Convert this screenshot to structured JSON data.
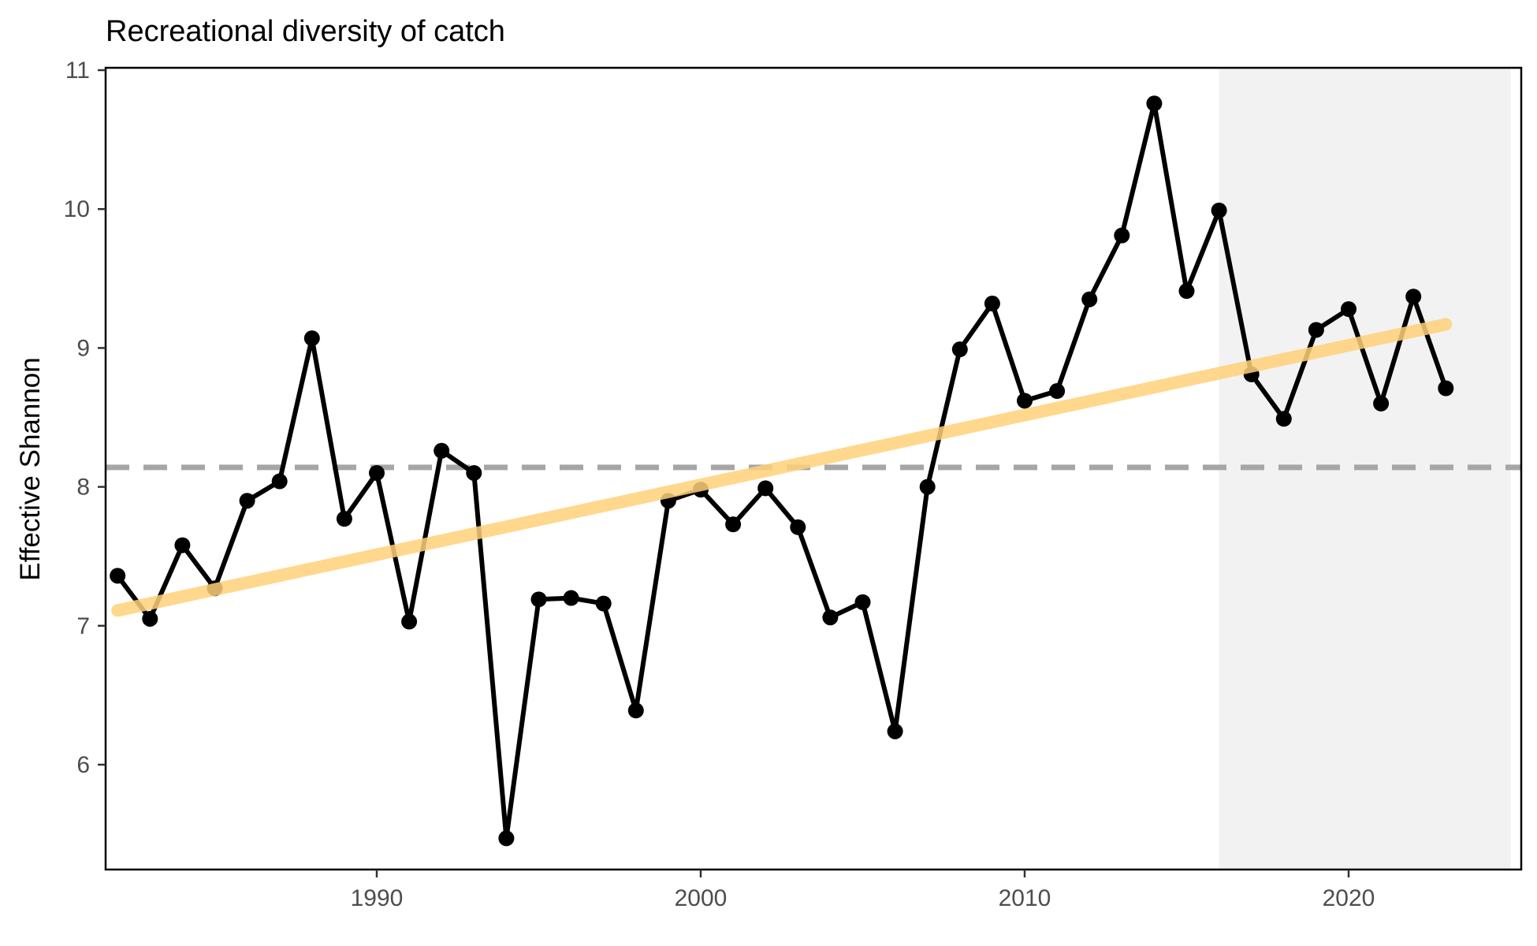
{
  "chart_data": {
    "type": "line",
    "title": "Recreational diversity of catch",
    "xlabel": "",
    "ylabel": "Effective Shannon",
    "xlim": [
      1982,
      2025.4
    ],
    "ylim": [
      5.2,
      11.0
    ],
    "xticks": [
      1990,
      2000,
      2010,
      2020
    ],
    "yticks": [
      6,
      7,
      8,
      9,
      10,
      11
    ],
    "grid": false,
    "legend": "none",
    "series": [
      {
        "x": [
          1982,
          1983,
          1984,
          1985,
          1986,
          1987,
          1988,
          1989,
          1990,
          1991,
          1992,
          1993,
          1994,
          1995,
          1996,
          1997,
          1998,
          1999,
          2000,
          2001,
          2002,
          2003,
          2004,
          2005,
          2006,
          2007,
          2008,
          2009,
          2010,
          2011,
          2012,
          2013,
          2014,
          2015,
          2016,
          2017,
          2018,
          2019,
          2020,
          2021,
          2022,
          2023
        ],
        "values": [
          7.36,
          7.05,
          7.58,
          7.27,
          7.9,
          8.04,
          9.07,
          7.77,
          8.1,
          7.03,
          8.26,
          8.1,
          5.47,
          7.19,
          7.2,
          7.16,
          6.39,
          7.9,
          7.98,
          7.73,
          7.99,
          7.71,
          7.06,
          7.17,
          6.24,
          8.0,
          8.99,
          9.32,
          8.62,
          8.69,
          9.35,
          9.81,
          10.76,
          9.41,
          9.99,
          8.81,
          8.49,
          9.13,
          9.28,
          8.6,
          9.37,
          8.71
        ],
        "color": "#000000"
      }
    ],
    "trend_line": {
      "x": [
        1982,
        2023
      ],
      "y": [
        7.11,
        9.17
      ],
      "color": "#FFD27A"
    },
    "mean_line": {
      "y": 8.14,
      "color": "#A6A6A6",
      "style": "dashed"
    },
    "shaded_region": {
      "x": [
        2016,
        2025
      ],
      "color": "#F2F2F2"
    }
  }
}
